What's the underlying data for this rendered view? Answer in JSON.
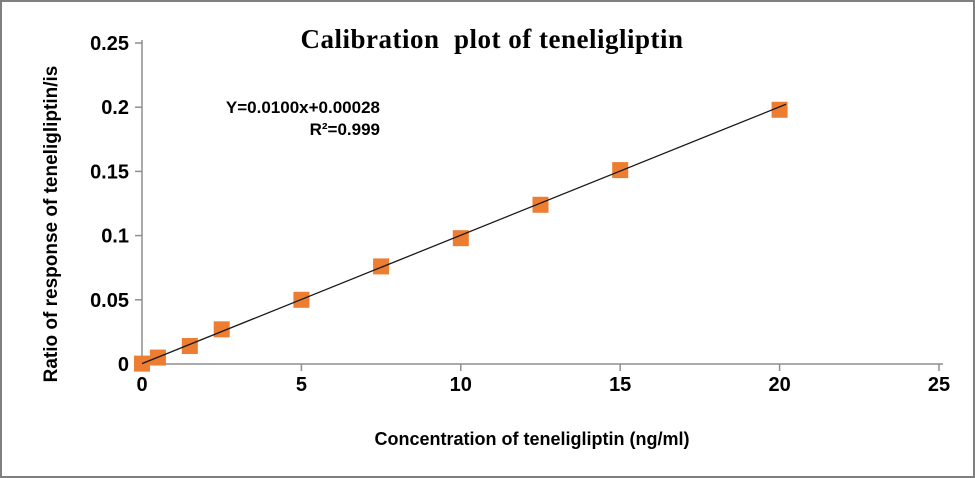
{
  "figure": {
    "background": "#ffffff",
    "border_color": "#7f7f7f"
  },
  "chart_data": {
    "type": "scatter",
    "title": "Calibration  plot of teneligliptin",
    "xlabel": "Concentration of teneligliptin (ng/ml)",
    "ylabel": "Ratio of response of teneligliptin/is",
    "annotation": {
      "equation": "Y=0.0100x+0.00028",
      "r_squared": "R²=0.999"
    },
    "series": [
      {
        "name": "calibration-standards",
        "marker": "square",
        "marker_color": "#ED7D31",
        "marker_size": 16,
        "points": [
          {
            "x": 0,
            "y": 0.0003
          },
          {
            "x": 0.5,
            "y": 0.005
          },
          {
            "x": 1.5,
            "y": 0.014
          },
          {
            "x": 2.5,
            "y": 0.027
          },
          {
            "x": 5,
            "y": 0.05
          },
          {
            "x": 7.5,
            "y": 0.076
          },
          {
            "x": 10,
            "y": 0.098
          },
          {
            "x": 12.5,
            "y": 0.124
          },
          {
            "x": 15,
            "y": 0.151
          },
          {
            "x": 20,
            "y": 0.198
          }
        ]
      }
    ],
    "trendline": {
      "slope": 0.01,
      "intercept": 0.00028,
      "x_start": 0,
      "x_end": 20.2,
      "color": "#1a1a1a"
    },
    "xlim": [
      0,
      25
    ],
    "ylim": [
      0,
      0.25
    ],
    "x_ticks": [
      0,
      5,
      10,
      15,
      20,
      25
    ],
    "x_tick_labels": [
      "0",
      "5",
      "10",
      "15",
      "20",
      "25"
    ],
    "y_ticks": [
      0,
      0.05,
      0.1,
      0.15,
      0.2,
      0.25
    ],
    "y_tick_labels": [
      "0",
      "0.05",
      "0.1",
      "0.15",
      "0.2",
      "0.25"
    ],
    "grid": false,
    "legend": false,
    "axis_color": "#8e8e8e",
    "text_color": "#000000"
  }
}
